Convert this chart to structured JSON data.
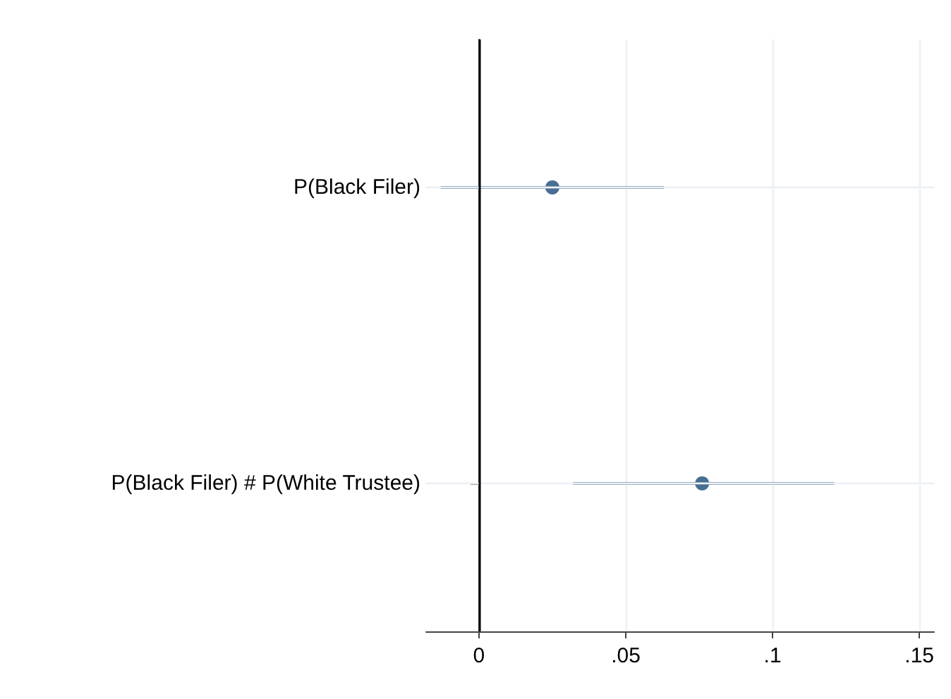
{
  "chart_data": {
    "type": "scatter",
    "orientation": "horizontal",
    "categories": [
      "P(Black Filer)",
      "P(Black Filer) # P(White Trustee)"
    ],
    "values": [
      0.025,
      0.076
    ],
    "errors": [
      [
        -0.013,
        0.063
      ],
      [
        0.032,
        0.121
      ]
    ],
    "color": "#1b4a78",
    "marker": "circle",
    "xlim": [
      -0.018,
      0.155
    ],
    "xticks": [
      0,
      {
        "value": 0.05,
        "label": ".05"
      },
      {
        "value": 0.1,
        "label": ".1"
      },
      {
        "value": 0.15,
        "label": ".15"
      }
    ],
    "ref_lines": [
      {
        "axis": "x",
        "value": 0,
        "color": "#000000"
      }
    ],
    "grid": true
  }
}
